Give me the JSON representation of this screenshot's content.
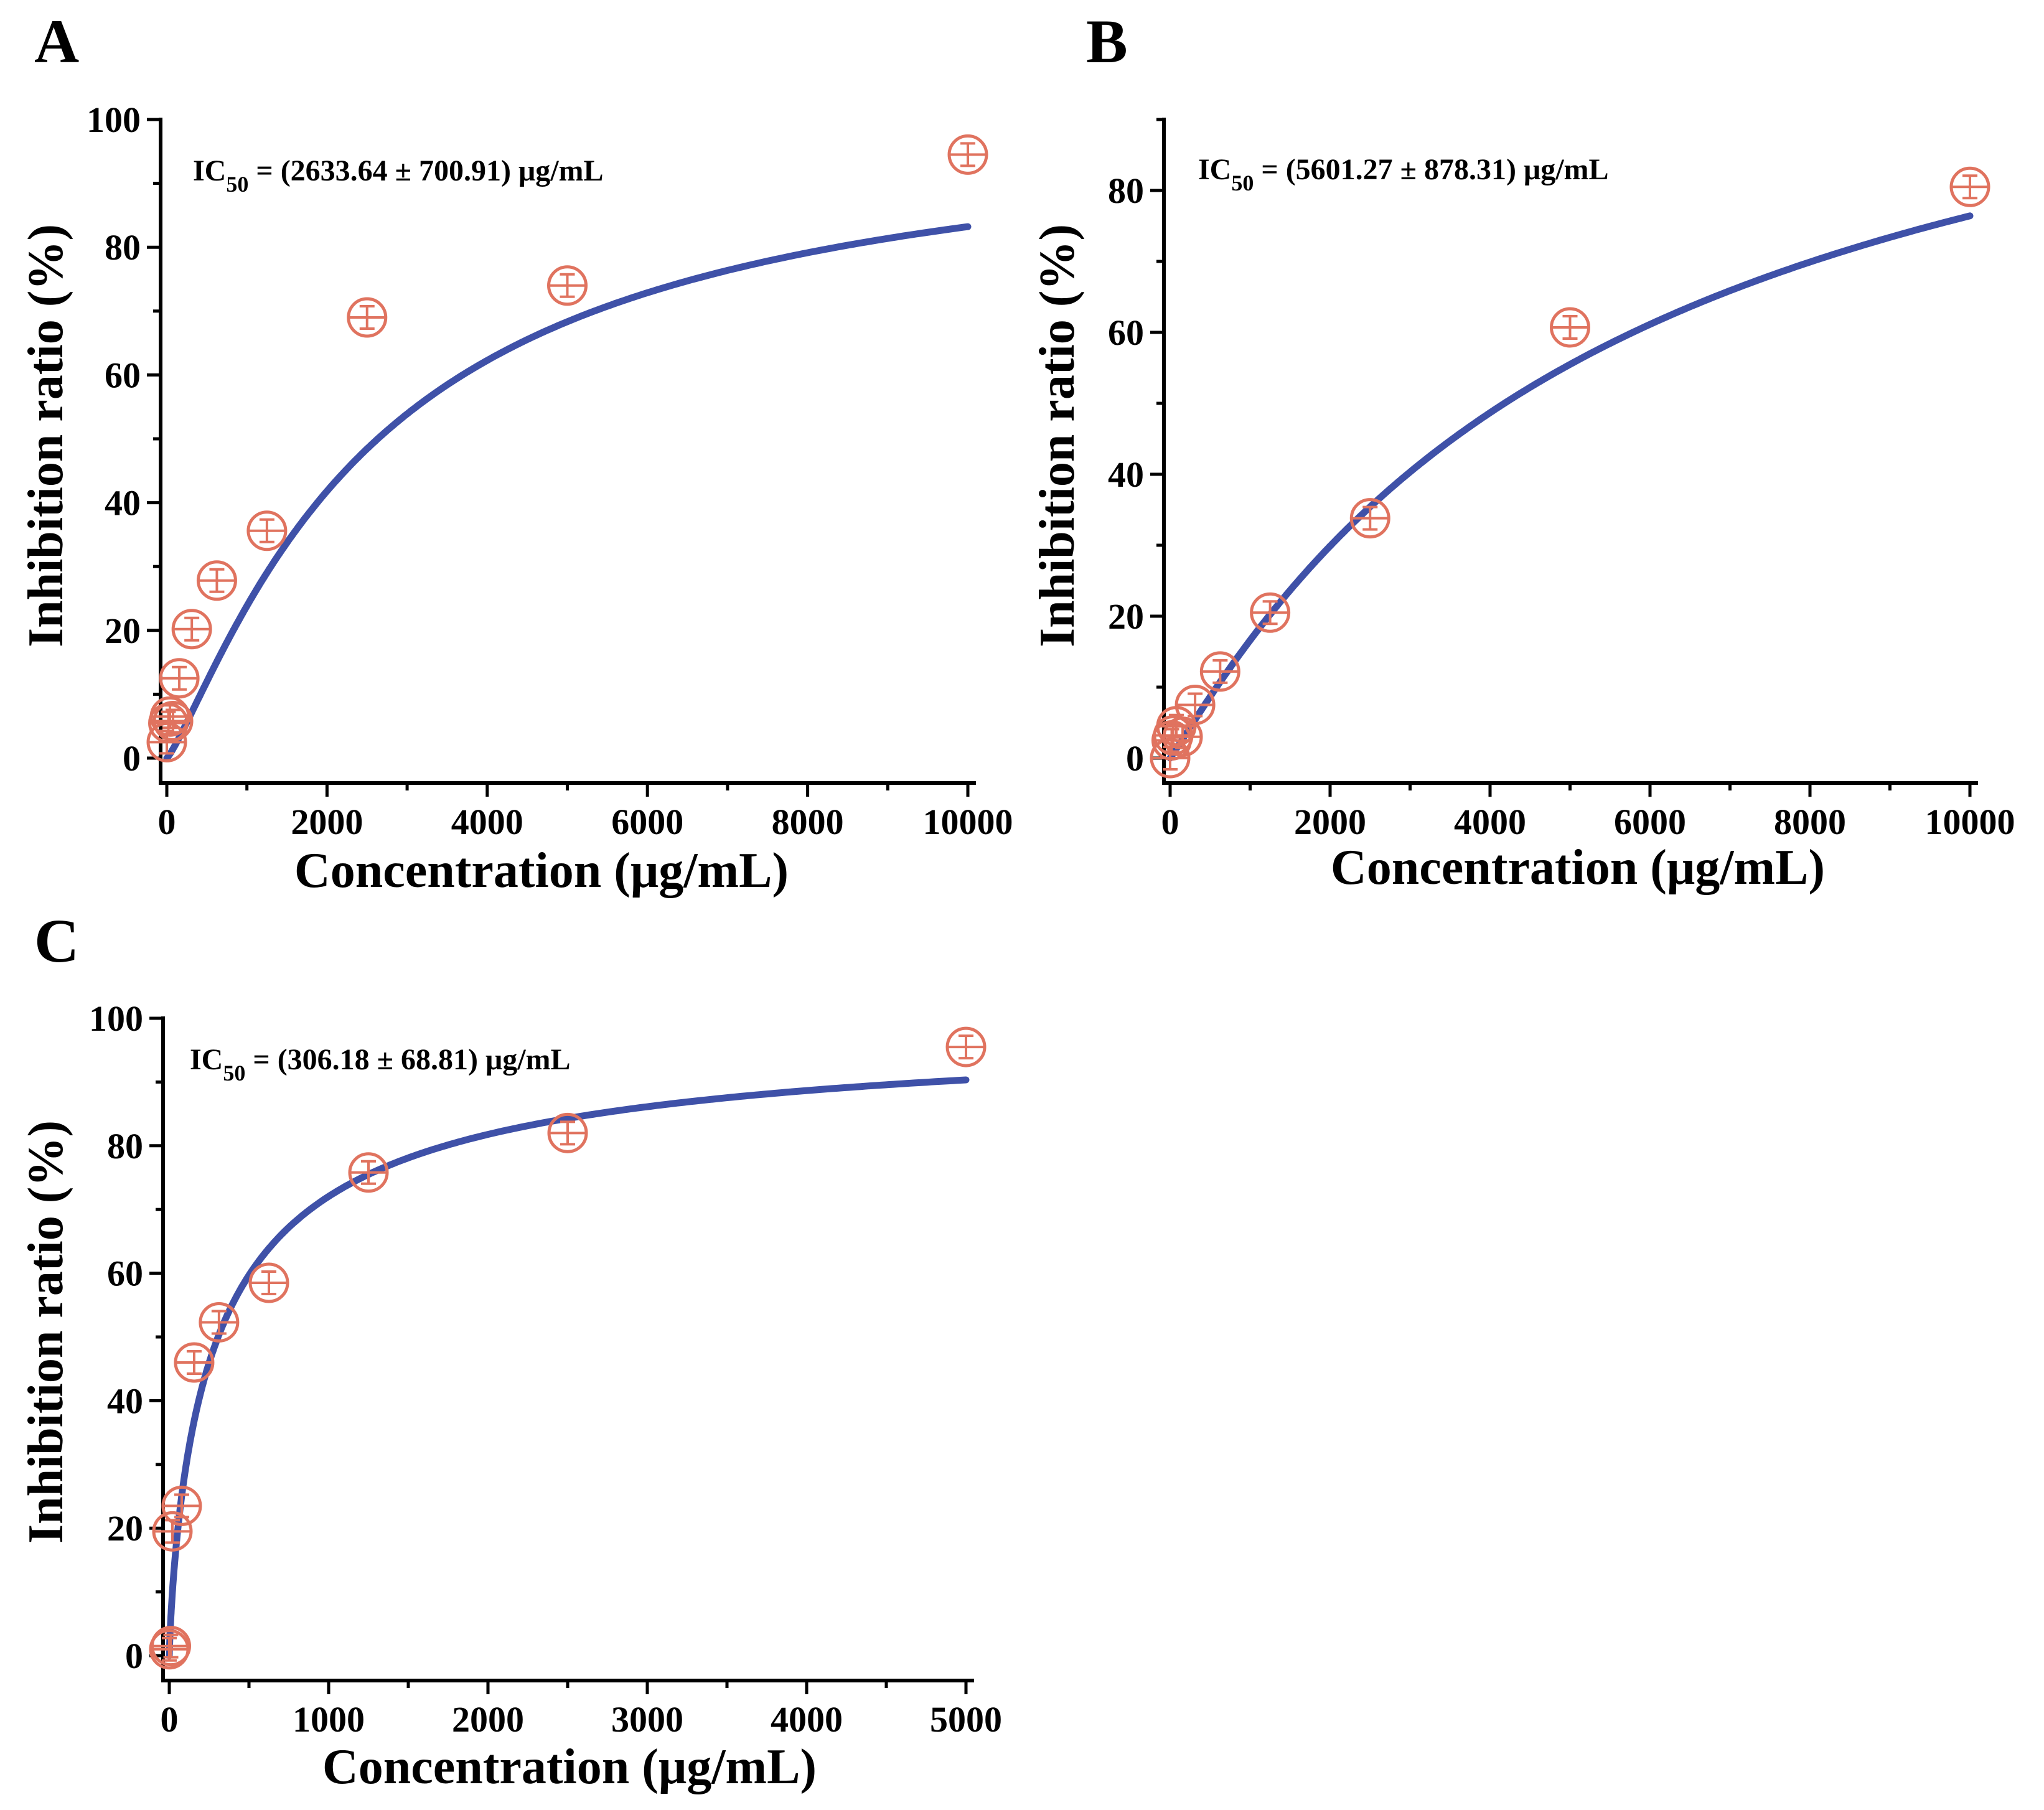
{
  "colors": {
    "fit_line": "#3F51A8",
    "marker": "#E0735F",
    "axis": "#000000"
  },
  "chart_data": [
    {
      "panel": "A",
      "type": "scatter",
      "xlabel": "Concentration (μg/mL)",
      "ylabel": "Inhibition ratio (%)",
      "xlim": [
        0,
        10000
      ],
      "ylim": [
        0,
        100
      ],
      "x_ticks": [
        0,
        2000,
        4000,
        6000,
        8000,
        10000
      ],
      "y_ticks": [
        0,
        20,
        40,
        60,
        80,
        100
      ],
      "annotation": {
        "main": "IC",
        "sub": "50",
        "rest": " = (2633.64 ± 700.91) μg/mL"
      },
      "points": [
        {
          "x": 0,
          "y": 2.5
        },
        {
          "x": 19.5,
          "y": 5.5
        },
        {
          "x": 39,
          "y": 6.5
        },
        {
          "x": 78,
          "y": 5.8
        },
        {
          "x": 156,
          "y": 12.5
        },
        {
          "x": 312,
          "y": 20.2
        },
        {
          "x": 625,
          "y": 27.8
        },
        {
          "x": 1250,
          "y": 35.6
        },
        {
          "x": 2500,
          "y": 69
        },
        {
          "x": 5000,
          "y": 74
        },
        {
          "x": 10000,
          "y": 94.5
        }
      ],
      "fit": {
        "model": "hill",
        "top": 100,
        "ic50": 2633.64,
        "hill": 1.2
      }
    },
    {
      "panel": "B",
      "type": "scatter",
      "xlabel": "Concentration (μg/mL)",
      "ylabel": "Inhibition ratio (%)",
      "xlim": [
        0,
        10000
      ],
      "ylim": [
        0,
        90
      ],
      "x_ticks": [
        0,
        2000,
        4000,
        6000,
        8000,
        10000
      ],
      "y_ticks": [
        0,
        20,
        40,
        60,
        80
      ],
      "annotation": {
        "main": "IC",
        "sub": "50",
        "rest": " = (5601.27 ± 878.31) μg/mL"
      },
      "points": [
        {
          "x": 0,
          "y": 0
        },
        {
          "x": 19.5,
          "y": 2.5
        },
        {
          "x": 39,
          "y": 3.2
        },
        {
          "x": 78,
          "y": 4.5
        },
        {
          "x": 156,
          "y": 3
        },
        {
          "x": 312,
          "y": 7.5
        },
        {
          "x": 625,
          "y": 12.2
        },
        {
          "x": 1250,
          "y": 20.5
        },
        {
          "x": 2500,
          "y": 33.8
        },
        {
          "x": 5000,
          "y": 60.7
        },
        {
          "x": 10000,
          "y": 80.5
        }
      ],
      "fit": {
        "model": "hill",
        "top": 118,
        "ic50": 5601.27,
        "hill": 1.05
      }
    },
    {
      "panel": "C",
      "type": "scatter",
      "xlabel": "Concentration (μg/mL)",
      "ylabel": "Inhibition ratio (%)",
      "xlim": [
        0,
        5000
      ],
      "ylim": [
        0,
        100
      ],
      "x_ticks": [
        0,
        1000,
        2000,
        3000,
        4000,
        5000
      ],
      "y_ticks": [
        0,
        20,
        40,
        60,
        80,
        100
      ],
      "annotation": {
        "main": "IC",
        "sub": "50",
        "rest": " = (306.18 ± 68.81) μg/mL"
      },
      "points": [
        {
          "x": 0,
          "y": 1
        },
        {
          "x": 9.8,
          "y": 1.5
        },
        {
          "x": 19.5,
          "y": 19.5
        },
        {
          "x": 78,
          "y": 23.5
        },
        {
          "x": 156,
          "y": 46
        },
        {
          "x": 312,
          "y": 52.3
        },
        {
          "x": 625,
          "y": 58.5
        },
        {
          "x": 1250,
          "y": 75.8
        },
        {
          "x": 2500,
          "y": 82
        },
        {
          "x": 5000,
          "y": 95.5
        }
      ],
      "fit": {
        "model": "hill",
        "top": 100,
        "ic50": 306.18,
        "hill": 0.8
      }
    }
  ]
}
